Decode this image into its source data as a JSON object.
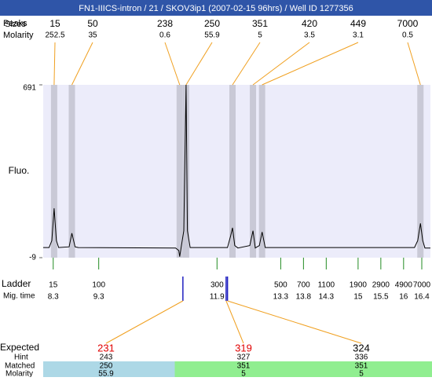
{
  "chart_data": {
    "type": "line",
    "title": "FN1-IIICS-intron / 21 / SKOV3ip1 (2007-02-15 96hrs) / Well ID 1277356",
    "y_label": "Fluo.",
    "ylim": [
      -9,
      691
    ],
    "yticks": [
      -9,
      691
    ],
    "xlim": [
      8.08,
      16.59
    ],
    "color": "#000000",
    "x": [
      8.08,
      8.21,
      8.27,
      8.32,
      8.37,
      8.42,
      8.65,
      8.71,
      8.78,
      8.85,
      10.99,
      11.06,
      11.08,
      11.11,
      11.17,
      11.22,
      11.25,
      11.31,
      12.13,
      12.2,
      12.24,
      12.29,
      12.36,
      12.62,
      12.69,
      12.74,
      12.83,
      12.89,
      12.96,
      16.24,
      16.31,
      16.37,
      16.42,
      16.47,
      16.59
    ],
    "values": [
      32,
      32,
      60,
      191,
      60,
      32,
      35,
      90,
      35,
      32,
      30,
      20,
      -5,
      30,
      100,
      691,
      100,
      32,
      32,
      80,
      112,
      40,
      30,
      40,
      100,
      30,
      40,
      95,
      32,
      32,
      60,
      130,
      60,
      30,
      30
    ],
    "peaks": {
      "peak_label": "Peaks",
      "size_label": "Sizes",
      "molarity_label": "Molarity",
      "sizes": [
        15,
        50,
        238,
        250,
        351,
        420,
        449,
        7000
      ],
      "molarities": [
        252.5,
        35,
        0.6,
        55.9,
        5,
        3.5,
        3.1,
        0.5
      ],
      "times": [
        8.32,
        8.71,
        11.08,
        11.22,
        12.24,
        12.69,
        12.89,
        16.37
      ],
      "band_color": "#c9c9d6",
      "link_color": "#f0a020"
    },
    "ladder": {
      "label": "Ladder",
      "time_label": "Mig. time",
      "sizes": [
        15,
        100,
        300,
        500,
        700,
        1100,
        1900,
        2900,
        4900,
        7000
      ],
      "times": [
        8.3,
        9.3,
        11.9,
        13.3,
        13.8,
        14.3,
        15,
        15.5,
        16,
        16.4
      ],
      "color": "#228b22"
    },
    "expected": {
      "label": "Expected",
      "hint_label": "Hint",
      "matched_label": "Matched",
      "molarity_label": "Molarity",
      "values": [
        231,
        319,
        324
      ],
      "colors": [
        "#e00000",
        "#e00000",
        "#000000"
      ],
      "times": [
        11.15,
        12.1,
        12.13
      ],
      "marker_color": "#2020c0",
      "hints": [
        243,
        327,
        336
      ],
      "matched": [
        250,
        351,
        351
      ],
      "molarities": [
        55.9,
        5,
        5
      ],
      "match_colors": [
        "#add8e6",
        "#90ee90",
        "#90ee90"
      ]
    }
  }
}
